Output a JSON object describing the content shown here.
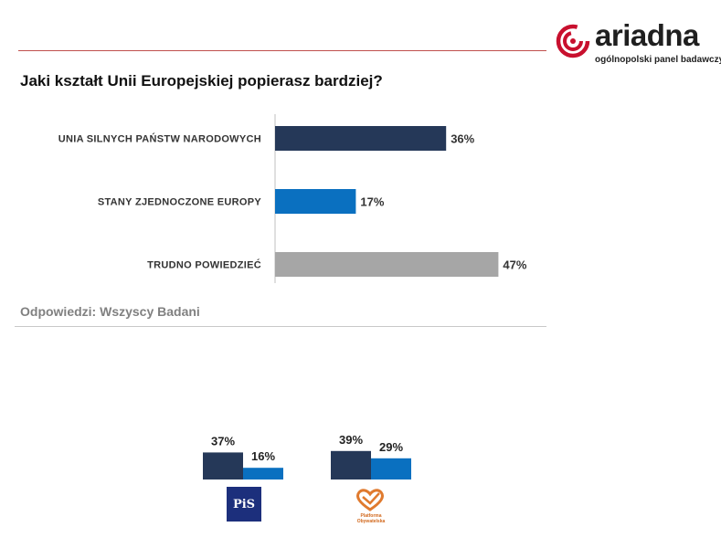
{
  "brand": {
    "name": "ariadna",
    "tagline": "ogólnopolski panel badawczy",
    "accent_color": "#c8102e"
  },
  "question": "Jaki kształt Unii Europejskiej popierasz bardziej?",
  "footnote": "Odpowiedzi: Wszyscy Badani",
  "chart_data": [
    {
      "type": "bar",
      "orientation": "horizontal",
      "categories": [
        "UNIA SILNYCH PAŃSTW NARODOWYCH",
        "STANY ZJEDNOCZONE EUROPY",
        "TRUDNO POWIEDZIEĆ"
      ],
      "values": [
        36,
        17,
        47
      ],
      "value_labels": [
        "36%",
        "17%",
        "47%"
      ],
      "colors": [
        "#253858",
        "#0a70c0",
        "#a6a6a6"
      ],
      "unit": "%",
      "grid": false
    },
    {
      "type": "bar",
      "orientation": "vertical",
      "categories": [
        "PiS",
        "Platforma Obywatelska"
      ],
      "series": [
        {
          "values": [
            37,
            39
          ],
          "labels": [
            "37%",
            "39%"
          ],
          "color": "#253858"
        },
        {
          "values": [
            16,
            29
          ],
          "labels": [
            "16%",
            "29%"
          ],
          "color": "#0a70c0"
        }
      ],
      "unit": "%",
      "grid": false
    }
  ],
  "party_logos": {
    "pis": {
      "text": "PiS",
      "icon": "pis-logo"
    },
    "po": {
      "text": "Platforma Obywatelska",
      "icon": "po-logo"
    }
  }
}
